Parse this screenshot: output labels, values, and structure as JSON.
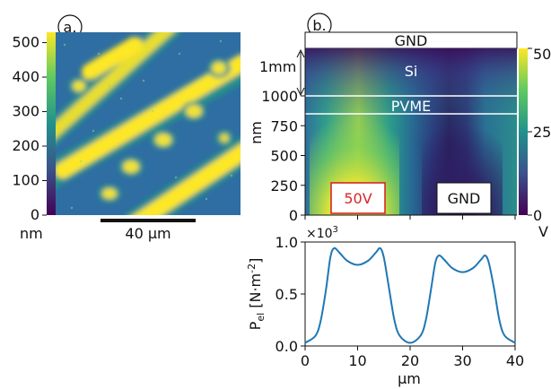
{
  "panel_a": {
    "label": "a.",
    "colorbar": {
      "ticks": [
        "500",
        "400",
        "300",
        "200",
        "100",
        "0"
      ],
      "unit": "nm"
    },
    "scalebar_label": "40 µm",
    "colors": [
      "#440154",
      "#3b528b",
      "#21918c",
      "#5ec962",
      "#fde725"
    ]
  },
  "panel_b": {
    "label": "b.",
    "gnd_top": "GND",
    "si_label": "Si",
    "pvme_label": "PVME",
    "mm_label": "1mm",
    "y_ticks": [
      "1000",
      "750",
      "500",
      "250",
      "0"
    ],
    "y_unit": "nm",
    "electrode_left": "50V",
    "electrode_right": "GND",
    "colorbar": {
      "ticks": [
        "50",
        "25",
        "0"
      ],
      "unit": "V"
    }
  },
  "panel_c": {
    "ylabel_main": "P",
    "ylabel_sub": "el",
    "ylabel_unit": " [N·m",
    "ylabel_sup": "-2",
    "ylabel_close": "]",
    "multiplier_base": "×10",
    "multiplier_exp": "3",
    "xlabel": "µm",
    "line_color": "#1f77b4"
  },
  "chart_data": {
    "type": "line",
    "title": "",
    "xlabel": "µm",
    "ylabel": "P_el [N·m^-2]",
    "xlim": [
      0,
      40
    ],
    "ylim": [
      0,
      1.0
    ],
    "x_ticks": [
      "0",
      "10",
      "20",
      "30",
      "40"
    ],
    "y_ticks": [
      "0.0",
      "0.5",
      "1.0"
    ],
    "series": [
      {
        "x": [
          0,
          2,
          3,
          4,
          4.8,
          5.5,
          6.5,
          8,
          10,
          12,
          13.5,
          14.3,
          15,
          16,
          17,
          18,
          20,
          22,
          23,
          24,
          24.8,
          25.5,
          26.5,
          28,
          30,
          32,
          33.5,
          34.3,
          35,
          36,
          37,
          38,
          40
        ],
        "y": [
          0.03,
          0.1,
          0.25,
          0.55,
          0.85,
          0.94,
          0.9,
          0.82,
          0.78,
          0.82,
          0.9,
          0.94,
          0.85,
          0.55,
          0.25,
          0.1,
          0.03,
          0.1,
          0.25,
          0.55,
          0.8,
          0.87,
          0.83,
          0.75,
          0.71,
          0.75,
          0.83,
          0.87,
          0.8,
          0.55,
          0.25,
          0.1,
          0.03
        ]
      }
    ]
  }
}
